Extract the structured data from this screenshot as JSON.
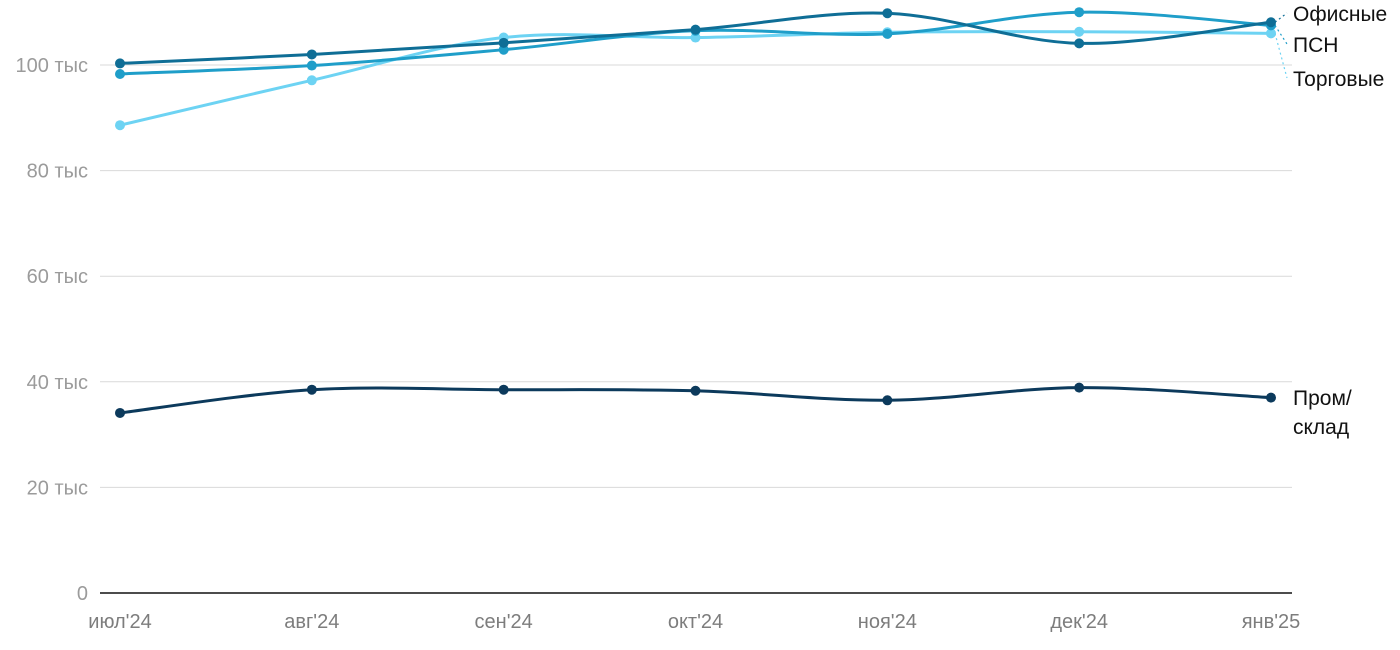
{
  "chart_data": {
    "type": "line",
    "title": "",
    "xlabel": "",
    "ylabel": "",
    "categories": [
      "июл'24",
      "авг'24",
      "сен'24",
      "окт'24",
      "ноя'24",
      "дек'24",
      "янв'25"
    ],
    "ylim": [
      0,
      110000
    ],
    "yticks": [
      0,
      20000,
      40000,
      60000,
      80000,
      100000
    ],
    "ytick_labels": [
      "0",
      "20 тыс",
      "40 тыс",
      "60 тыс",
      "80 тыс",
      "100 тыс"
    ],
    "grid": true,
    "legend": "direct labels at right end",
    "series": [
      {
        "name": "Офисные",
        "color": "#0f6e96",
        "values": [
          100300,
          102000,
          104200,
          106700,
          109800,
          104100,
          108100
        ]
      },
      {
        "name": "ПСН",
        "color": "#1f9ec9",
        "values": [
          98300,
          99900,
          102900,
          106500,
          105900,
          110000,
          107500
        ]
      },
      {
        "name": "Торговые",
        "color": "#6dd3f3",
        "values": [
          88600,
          97100,
          105200,
          105200,
          106200,
          106300,
          106000
        ]
      },
      {
        "name": "Пром/\nсклад",
        "color": "#0c3a5c",
        "values": [
          34100,
          38500,
          38500,
          38300,
          36500,
          38900,
          37000
        ]
      }
    ]
  }
}
